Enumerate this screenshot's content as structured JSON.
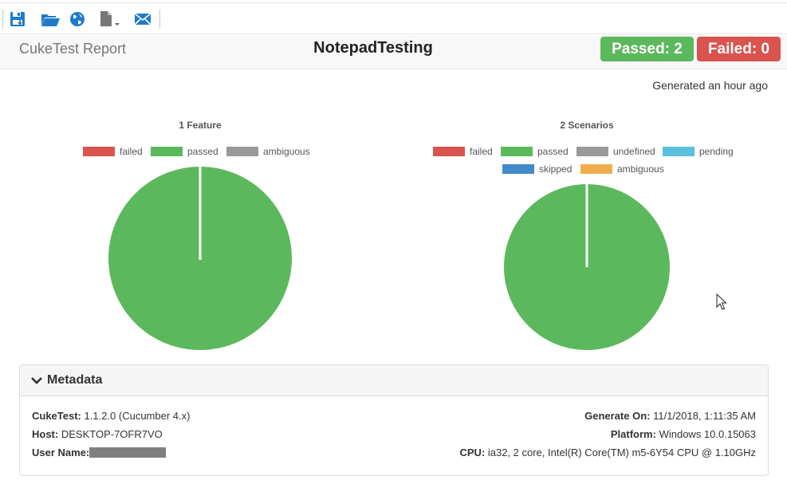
{
  "toolbar": {
    "buttons": [
      {
        "icon": "save-icon"
      },
      {
        "icon": "open-folder-icon"
      },
      {
        "icon": "globe-icon"
      },
      {
        "icon": "new-file-dropdown-icon"
      },
      {
        "icon": "email-icon"
      }
    ]
  },
  "header": {
    "brand": "CukeTest Report",
    "title": "NotepadTesting",
    "passed": "Passed: 2",
    "failed": "Failed: 0"
  },
  "generated": "Generated an hour ago",
  "colors": {
    "failed": "#d9534f",
    "passed": "#5cb85c",
    "ambiguous_grey": "#999999",
    "undefined": "#999999",
    "pending": "#5bc0de",
    "skipped": "#428bca",
    "ambiguous_orange": "#f0ad4e"
  },
  "charts": [
    {
      "title": "1 Feature",
      "legend": [
        "failed",
        "passed",
        "ambiguous"
      ],
      "values": {
        "failed": 0,
        "passed": 1,
        "ambiguous": 0
      }
    },
    {
      "title": "2 Scenarios",
      "legend": [
        "failed",
        "passed",
        "undefined",
        "pending",
        "skipped",
        "ambiguous"
      ],
      "values": {
        "failed": 0,
        "passed": 2,
        "undefined": 0,
        "pending": 0,
        "skipped": 0,
        "ambiguous": 0
      }
    }
  ],
  "metadata": {
    "title": "Metadata",
    "cuketest_label": "CukeTest:",
    "cuketest_value": "1.1.2.0 (Cucumber 4.x)",
    "host_label": "Host:",
    "host_value": "DESKTOP-7OFR7VO",
    "user_label": "User Name:",
    "generate_label": "Generate On:",
    "generate_value": "11/1/2018, 1:11:35 AM",
    "platform_label": "Platform:",
    "platform_value": "Windows 10.0.15063",
    "cpu_label": "CPU:",
    "cpu_value": "ia32, 2 core, Intel(R) Core(TM) m5-6Y54 CPU @ 1.10GHz"
  }
}
